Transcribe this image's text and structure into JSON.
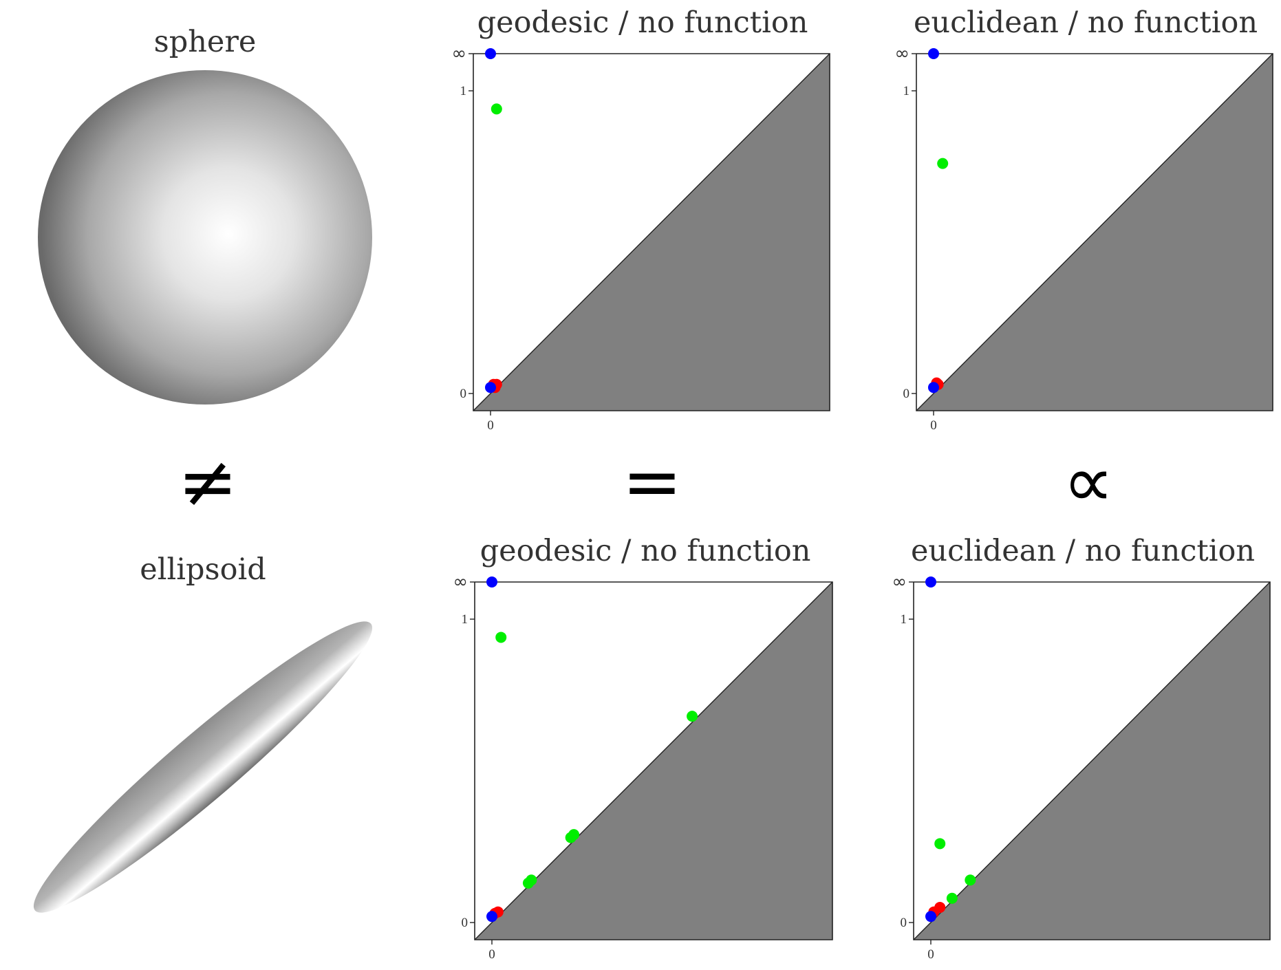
{
  "shapes": {
    "sphere_label": "sphere",
    "ellipsoid_label": "ellipsoid"
  },
  "relations": {
    "sphere_vs_ellipsoid": "≠",
    "geodesic": "=",
    "euclidean": "∝"
  },
  "colors": {
    "dim0": "#ff0000",
    "dim1": "#00ee00",
    "dim2": "#0000ff",
    "below_diagonal": "#808080"
  },
  "chart_data": [
    {
      "type": "scatter",
      "title": "geodesic / no function",
      "shape": "sphere",
      "x_ticks": [
        "0"
      ],
      "y_ticks": [
        "0",
        "1",
        "∞"
      ],
      "series": [
        {
          "color": "red",
          "points": [
            [
              0.01,
              0.03
            ],
            [
              0.02,
              0.03
            ],
            [
              0.015,
              0.02
            ]
          ]
        },
        {
          "color": "green",
          "points": [
            [
              0.02,
              0.94
            ]
          ]
        },
        {
          "color": "blue",
          "points": [
            [
              0.0,
              0.02
            ],
            [
              0.0,
              "∞"
            ]
          ]
        }
      ]
    },
    {
      "type": "scatter",
      "title": "euclidean / no function",
      "shape": "sphere",
      "x_ticks": [
        "0"
      ],
      "y_ticks": [
        "0",
        "1",
        "∞"
      ],
      "series": [
        {
          "color": "red",
          "points": [
            [
              0.01,
              0.035
            ],
            [
              0.015,
              0.03
            ]
          ]
        },
        {
          "color": "green",
          "points": [
            [
              0.03,
              0.76
            ]
          ]
        },
        {
          "color": "blue",
          "points": [
            [
              0.0,
              0.02
            ],
            [
              0.0,
              "∞"
            ]
          ]
        }
      ]
    },
    {
      "type": "scatter",
      "title": "geodesic / no function",
      "shape": "ellipsoid",
      "x_ticks": [
        "0"
      ],
      "y_ticks": [
        "0",
        "1",
        "∞"
      ],
      "series": [
        {
          "color": "red",
          "points": [
            [
              0.01,
              0.03
            ],
            [
              0.02,
              0.035
            ]
          ]
        },
        {
          "color": "green",
          "points": [
            [
              0.03,
              0.94
            ],
            [
              0.66,
              0.68
            ],
            [
              0.27,
              0.29
            ],
            [
              0.26,
              0.28
            ],
            [
              0.12,
              0.13
            ],
            [
              0.13,
              0.14
            ]
          ]
        },
        {
          "color": "blue",
          "points": [
            [
              0.0,
              0.02
            ],
            [
              0.0,
              "∞"
            ]
          ]
        }
      ]
    },
    {
      "type": "scatter",
      "title": "euclidean / no function",
      "shape": "ellipsoid",
      "x_ticks": [
        "0"
      ],
      "y_ticks": [
        "0",
        "1",
        "∞"
      ],
      "series": [
        {
          "color": "red",
          "points": [
            [
              0.01,
              0.035
            ],
            [
              0.03,
              0.05
            ]
          ]
        },
        {
          "color": "green",
          "points": [
            [
              0.03,
              0.26
            ],
            [
              0.13,
              0.14
            ],
            [
              0.07,
              0.08
            ]
          ]
        },
        {
          "color": "blue",
          "points": [
            [
              0.0,
              0.02
            ],
            [
              0.0,
              "∞"
            ]
          ]
        }
      ]
    }
  ]
}
